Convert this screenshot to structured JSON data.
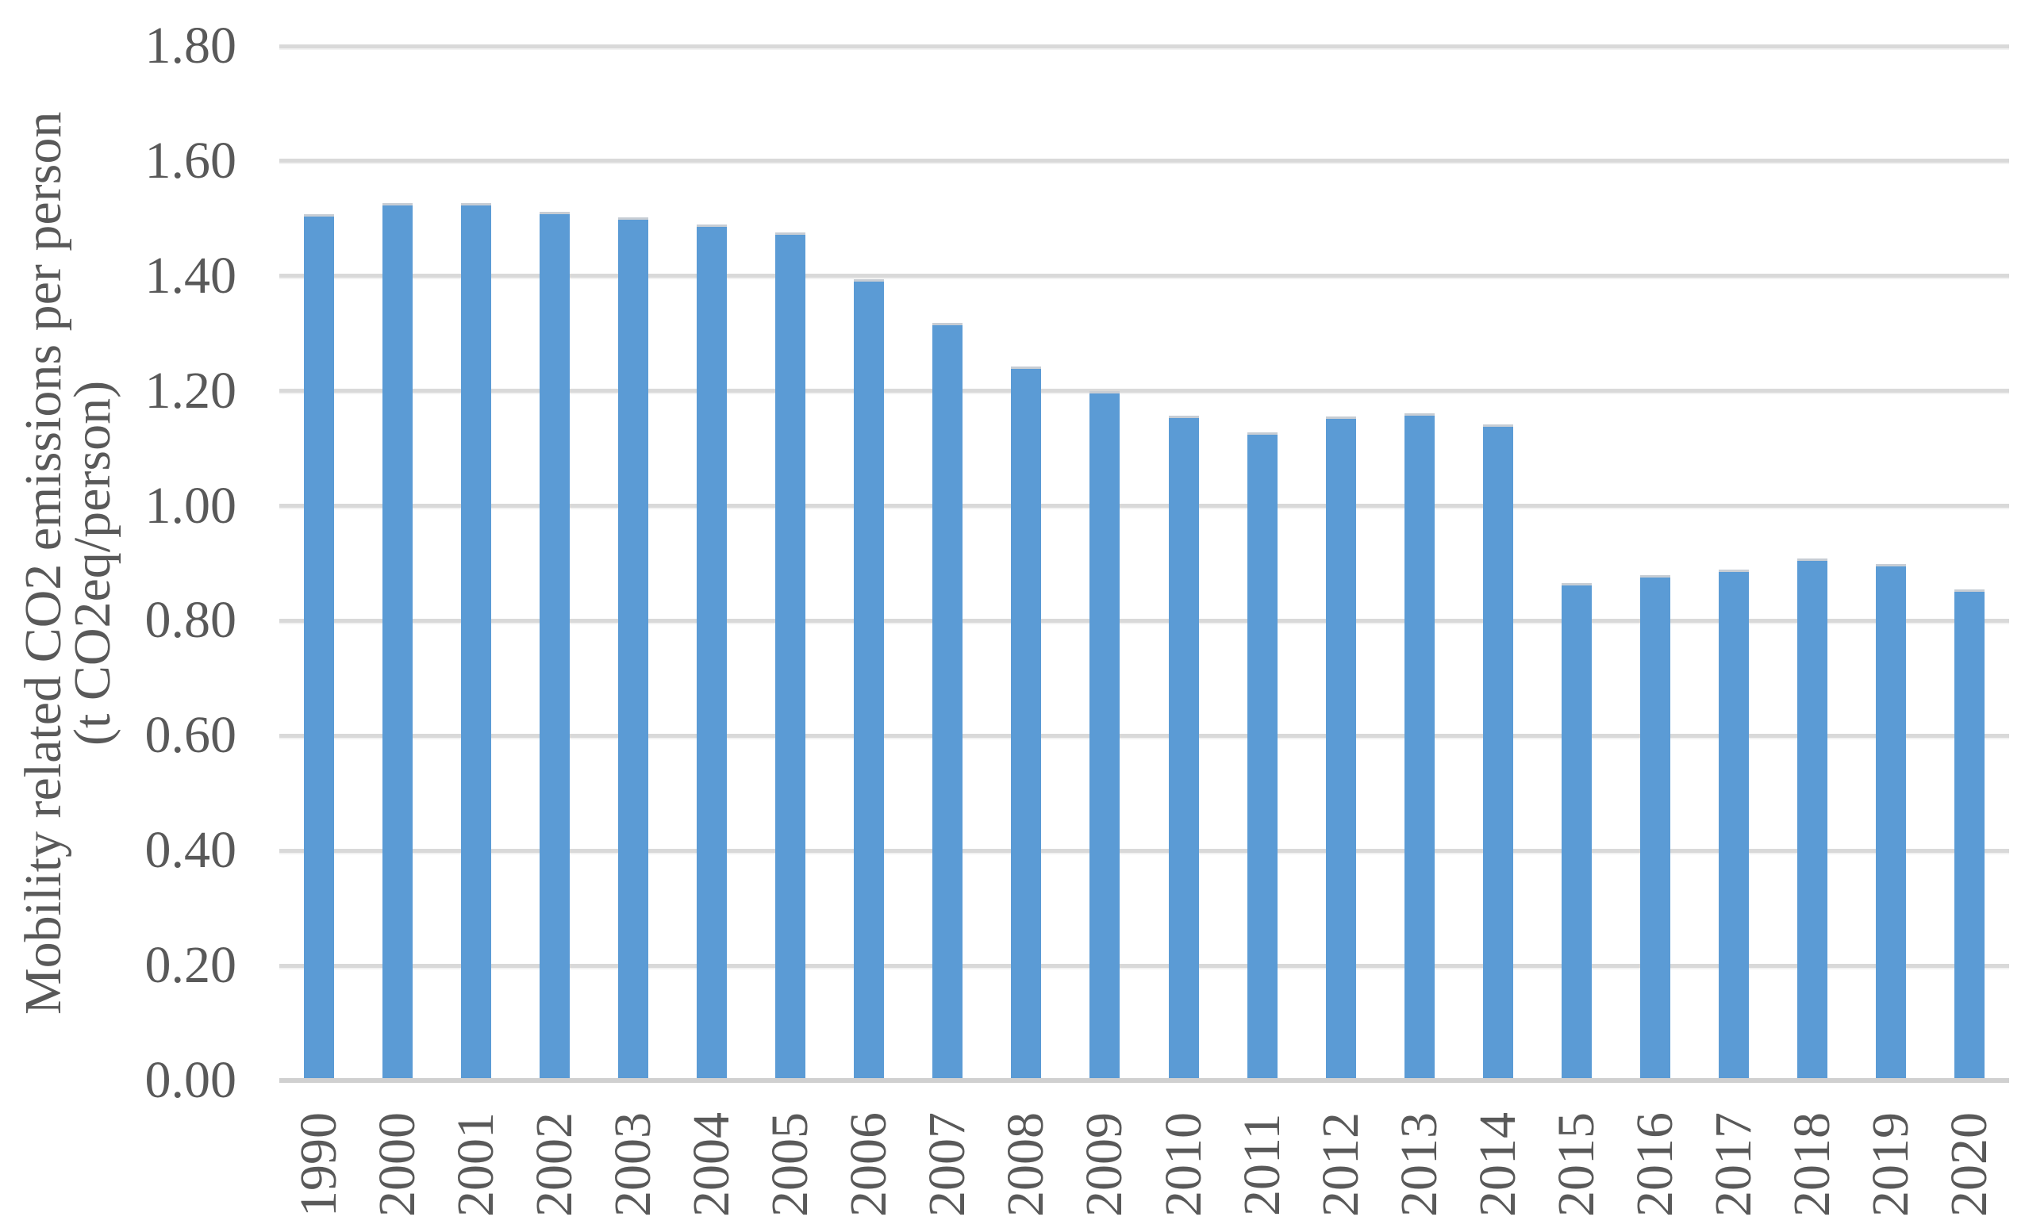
{
  "chart_data": {
    "type": "bar",
    "title": "",
    "categories": [
      "1990",
      "2000",
      "2001",
      "2002",
      "2003",
      "2004",
      "2005",
      "2006",
      "2007",
      "2008",
      "2009",
      "2010",
      "2011",
      "2012",
      "2013",
      "2014",
      "2015",
      "2016",
      "2017",
      "2018",
      "2019",
      "2020"
    ],
    "values": [
      1.508,
      1.527,
      1.527,
      1.512,
      1.502,
      1.489,
      1.475,
      1.394,
      1.318,
      1.242,
      1.199,
      1.157,
      1.128,
      1.156,
      1.161,
      1.142,
      0.865,
      0.879,
      0.889,
      0.908,
      0.899,
      0.855
    ],
    "ylabel_line1": "Mobility related CO2 emissions per person",
    "ylabel_line2": "(t CO2eq/person)",
    "xlabel": "",
    "ylim": [
      0,
      1.8
    ],
    "ytick_step": 0.2,
    "ytick_decimals": 2,
    "grid": true,
    "legend_position": "none",
    "bar_color": "#5B9BD5",
    "bar_top_edge_color": "#C7CDD4",
    "gridline_color": "#D9D9D9",
    "baseline_color": "#D0D0D0",
    "axis_text_color": "#595959",
    "background_color": "#FFFFFF"
  }
}
